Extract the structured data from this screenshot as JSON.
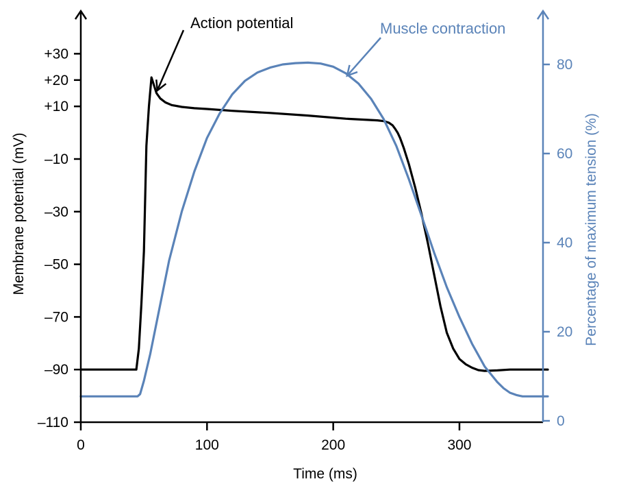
{
  "chart_data": {
    "type": "line",
    "xlabel": "Time (ms)",
    "ylabel_left": "Membrane potential (mV)",
    "ylabel_right": "Percentage of maximum tension (%)",
    "xlim": [
      0,
      370
    ],
    "ylim_left": [
      -110,
      40
    ],
    "ylim_right": [
      0,
      90
    ],
    "x_ticks": [
      {
        "value": 0,
        "label": "0"
      },
      {
        "value": 100,
        "label": "100"
      },
      {
        "value": 200,
        "label": "200"
      },
      {
        "value": 300,
        "label": "300"
      }
    ],
    "y_ticks_left": [
      {
        "value": 30,
        "label": "+30"
      },
      {
        "value": 20,
        "label": "+20"
      },
      {
        "value": 10,
        "label": "+10"
      },
      {
        "value": -10,
        "label": "–10"
      },
      {
        "value": -30,
        "label": "–30"
      },
      {
        "value": -50,
        "label": "–50"
      },
      {
        "value": -70,
        "label": "–70"
      },
      {
        "value": -90,
        "label": "–90"
      },
      {
        "value": -110,
        "label": "–110"
      }
    ],
    "y_ticks_right": [
      {
        "value": 80,
        "label": "80"
      },
      {
        "value": 60,
        "label": "60"
      },
      {
        "value": 40,
        "label": "40"
      },
      {
        "value": 20,
        "label": "20"
      },
      {
        "value": 0,
        "label": "0"
      }
    ],
    "series": [
      {
        "name": "Action potential",
        "axis": "left",
        "color": "#000000",
        "x": [
          0,
          44,
          46,
          48,
          50,
          51,
          52,
          54,
          56,
          58,
          60,
          63,
          67,
          72,
          80,
          90,
          100,
          120,
          150,
          180,
          210,
          235,
          240,
          244,
          247,
          249,
          251,
          253,
          256,
          260,
          265,
          270,
          275,
          280,
          285,
          290,
          295,
          300,
          305,
          310,
          315,
          320,
          330,
          340,
          370
        ],
        "y": [
          -90,
          -90,
          -82,
          -65,
          -45,
          -25,
          -5,
          10,
          21,
          18,
          15,
          13,
          11.5,
          10.5,
          9.8,
          9.3,
          9,
          8.3,
          7.5,
          6.5,
          5.3,
          4.7,
          4.4,
          3.8,
          2.8,
          1.5,
          0,
          -2,
          -6,
          -12,
          -21,
          -31,
          -42,
          -54,
          -66,
          -76,
          -82,
          -86,
          -88,
          -89.3,
          -90.2,
          -90.5,
          -90.3,
          -90,
          -90
        ]
      },
      {
        "name": "Muscle contraction",
        "axis": "right",
        "color": "#5a83b8",
        "x": [
          0,
          45,
          47,
          50,
          55,
          60,
          65,
          70,
          80,
          90,
          100,
          110,
          120,
          130,
          140,
          150,
          160,
          170,
          180,
          190,
          200,
          210,
          220,
          230,
          240,
          250,
          260,
          270,
          280,
          290,
          300,
          310,
          320,
          330,
          335,
          340,
          345,
          348,
          350,
          370
        ],
        "y": [
          5.5,
          5.5,
          6,
          9,
          15,
          22,
          29,
          36,
          47,
          56,
          63.5,
          69,
          73.3,
          76.3,
          78.2,
          79.3,
          80,
          80.3,
          80.4,
          80.2,
          79.5,
          78,
          75.7,
          72.3,
          67.7,
          61.7,
          54.2,
          46,
          37.7,
          30,
          23.3,
          17.3,
          12.2,
          8.7,
          7.3,
          6.3,
          5.8,
          5.6,
          5.5,
          5.5
        ]
      }
    ],
    "annotations": [
      {
        "text": "Action potential",
        "color": "#000000",
        "points_to": {
          "axis": "left",
          "x": 59,
          "y": 15
        }
      },
      {
        "text": "Muscle contraction",
        "color": "#5a83b8",
        "points_to": {
          "axis": "right",
          "x": 211,
          "y": 77
        }
      }
    ],
    "axis_colors": {
      "left": "#000000",
      "right": "#5a83b8"
    },
    "grid": false
  }
}
